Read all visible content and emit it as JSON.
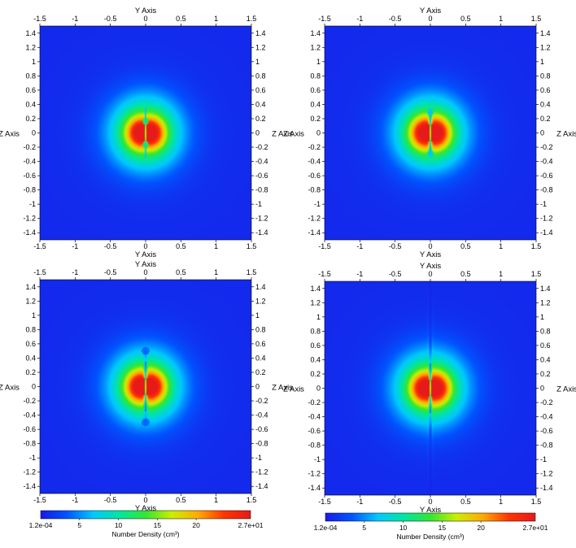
{
  "chart_data": [
    {
      "type": "heatmap",
      "xlabel": "Y Axis",
      "ylabel": "Z Axis",
      "xlim": [
        -1.5,
        1.5
      ],
      "ylim": [
        -1.5,
        1.5
      ],
      "x_ticks": [
        "-1.5",
        "-1",
        "-0.5",
        "0",
        "0.5",
        "1",
        "1.5"
      ],
      "y_ticks": [
        "1.4",
        "1.2",
        "1",
        "0.8",
        "0.6",
        "0.4",
        "0.2",
        "0",
        "-0.2",
        "-0.4",
        "-0.6",
        "-0.8",
        "-1",
        "-1.2",
        "-1.4"
      ],
      "core": {
        "peak": 27,
        "core_radius": 0.14,
        "halo_radius": 0.48,
        "lobe_offset_y": 0.07,
        "gap_halfwidth": 0.015
      },
      "jet": {
        "length": 0.17,
        "bubble_z": 0.17,
        "bubble_radius": 0.045,
        "bubble_density": 9
      }
    },
    {
      "type": "heatmap",
      "xlabel": "Y Axis",
      "ylabel": "Z Axis",
      "xlim": [
        -1.5,
        1.5
      ],
      "ylim": [
        -1.5,
        1.5
      ],
      "x_ticks": [
        "-1.5",
        "-1",
        "-0.5",
        "0",
        "0.5",
        "1",
        "1.5"
      ],
      "y_ticks": [
        "1.4",
        "1.2",
        "1",
        "0.8",
        "0.6",
        "0.4",
        "0.2",
        "0",
        "-0.2",
        "-0.4",
        "-0.6",
        "-0.8",
        "-1",
        "-1.2",
        "-1.4"
      ],
      "core": {
        "peak": 27,
        "core_radius": 0.14,
        "halo_radius": 0.48,
        "lobe_offset_y": 0.08,
        "gap_halfwidth": 0.015
      },
      "jet": {
        "length": 0.3,
        "bubble_z": 0.3,
        "bubble_radius": 0.05,
        "bubble_density": 7
      }
    },
    {
      "type": "heatmap",
      "xlabel": "Y Axis",
      "ylabel": "Z Axis",
      "xlim": [
        -1.5,
        1.5
      ],
      "ylim": [
        -1.5,
        1.5
      ],
      "x_ticks": [
        "-1.5",
        "-1",
        "-0.5",
        "0",
        "0.5",
        "1",
        "1.5"
      ],
      "y_ticks": [
        "1.4",
        "1.2",
        "1",
        "0.8",
        "0.6",
        "0.4",
        "0.2",
        "0",
        "-0.2",
        "-0.4",
        "-0.6",
        "-0.8",
        "-1",
        "-1.2",
        "-1.4"
      ],
      "core": {
        "peak": 27,
        "core_radius": 0.14,
        "halo_radius": 0.48,
        "lobe_offset_y": 0.08,
        "gap_halfwidth": 0.015
      },
      "jet": {
        "length": 0.5,
        "bubble_z": 0.5,
        "bubble_radius": 0.055,
        "bubble_density": 3
      }
    },
    {
      "type": "heatmap",
      "xlabel": "Y Axis",
      "ylabel": "Z Axis",
      "xlim": [
        -1.5,
        1.5
      ],
      "ylim": [
        -1.5,
        1.5
      ],
      "x_ticks": [
        "-1.5",
        "-1",
        "-0.5",
        "0",
        "0.5",
        "1",
        "1.5"
      ],
      "y_ticks": [
        "1.4",
        "1.2",
        "1",
        "0.8",
        "0.6",
        "0.4",
        "0.2",
        "0",
        "-0.2",
        "-0.4",
        "-0.6",
        "-0.8",
        "-1",
        "-1.2",
        "-1.4"
      ],
      "core": {
        "peak": 27,
        "core_radius": 0.14,
        "halo_radius": 0.48,
        "lobe_offset_y": 0.08,
        "gap_halfwidth": 0.015
      },
      "jet": {
        "length": 1.5,
        "bubble_z": 0,
        "bubble_radius": 0,
        "bubble_density": 0
      }
    }
  ],
  "colorbar": {
    "title": "Number Density (cm³)",
    "min": 0.00012,
    "max": 27,
    "min_label": "1.2e-04",
    "max_label": "2.7e+01",
    "tick_values": [
      5,
      10,
      15,
      20
    ],
    "tick_labels": [
      "5",
      "10",
      "15",
      "20"
    ],
    "colors": [
      "#1a1ae6",
      "#0055ff",
      "#00c8ff",
      "#00e6a0",
      "#33e633",
      "#ccee00",
      "#ffaa00",
      "#ff3300",
      "#e61a1a"
    ]
  }
}
